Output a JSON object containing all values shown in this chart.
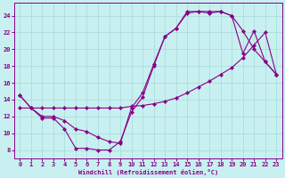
{
  "bg_color": "#c8f0f0",
  "grid_color": "#a8d8d8",
  "line_color": "#880088",
  "xlabel": "Windchill (Refroidissement éolien,°C)",
  "xlim": [
    -0.5,
    23.5
  ],
  "ylim": [
    7.0,
    25.5
  ],
  "xticks": [
    0,
    1,
    2,
    3,
    4,
    5,
    6,
    7,
    8,
    9,
    10,
    11,
    12,
    13,
    14,
    15,
    16,
    17,
    18,
    19,
    20,
    21,
    22,
    23
  ],
  "yticks": [
    8,
    10,
    12,
    14,
    16,
    18,
    20,
    22,
    24
  ],
  "curve1_x": [
    0,
    1,
    2,
    3,
    4,
    5,
    6,
    7,
    8,
    9,
    10,
    11,
    12,
    13,
    14,
    15,
    16,
    17,
    18,
    19,
    20,
    21,
    22,
    23
  ],
  "curve1_y": [
    14.5,
    13.0,
    11.8,
    11.8,
    10.5,
    8.2,
    8.2,
    8.0,
    8.0,
    9.0,
    12.5,
    14.3,
    18.0,
    21.5,
    22.5,
    24.3,
    24.5,
    24.3,
    24.5,
    24.0,
    22.2,
    20.0,
    18.5,
    17.0
  ],
  "curve2_x": [
    0,
    1,
    2,
    3,
    4,
    5,
    6,
    7,
    8,
    9,
    10,
    11,
    12,
    13,
    14,
    15,
    16,
    17,
    18,
    19,
    20,
    21,
    22,
    23
  ],
  "curve2_y": [
    13.0,
    13.0,
    13.0,
    13.0,
    13.0,
    13.0,
    13.0,
    13.0,
    13.0,
    13.0,
    13.2,
    13.3,
    13.5,
    13.8,
    14.2,
    14.8,
    15.5,
    16.2,
    17.0,
    17.8,
    19.0,
    20.5,
    22.0,
    17.0
  ],
  "curve3_x": [
    0,
    1,
    2,
    3,
    4,
    5,
    6,
    7,
    8,
    9,
    10,
    11,
    12,
    13,
    14,
    15,
    16,
    17,
    18,
    19,
    20,
    21,
    22,
    23
  ],
  "curve3_y": [
    14.5,
    13.0,
    12.0,
    12.0,
    11.5,
    10.5,
    10.2,
    9.5,
    9.0,
    8.8,
    13.0,
    14.8,
    18.2,
    21.5,
    22.5,
    24.5,
    24.5,
    24.5,
    24.5,
    24.0,
    19.5,
    22.2,
    18.5,
    17.0
  ]
}
